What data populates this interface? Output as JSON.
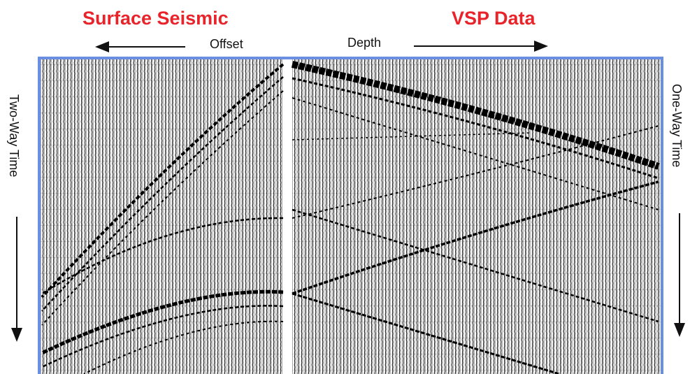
{
  "left_header": {
    "title": "Surface Seismic",
    "axis_label": "Offset",
    "side_label": "Two-Way Time"
  },
  "right_header": {
    "title": "VSP Data",
    "axis_label": "Depth",
    "side_label": "One-Way Time"
  }
}
